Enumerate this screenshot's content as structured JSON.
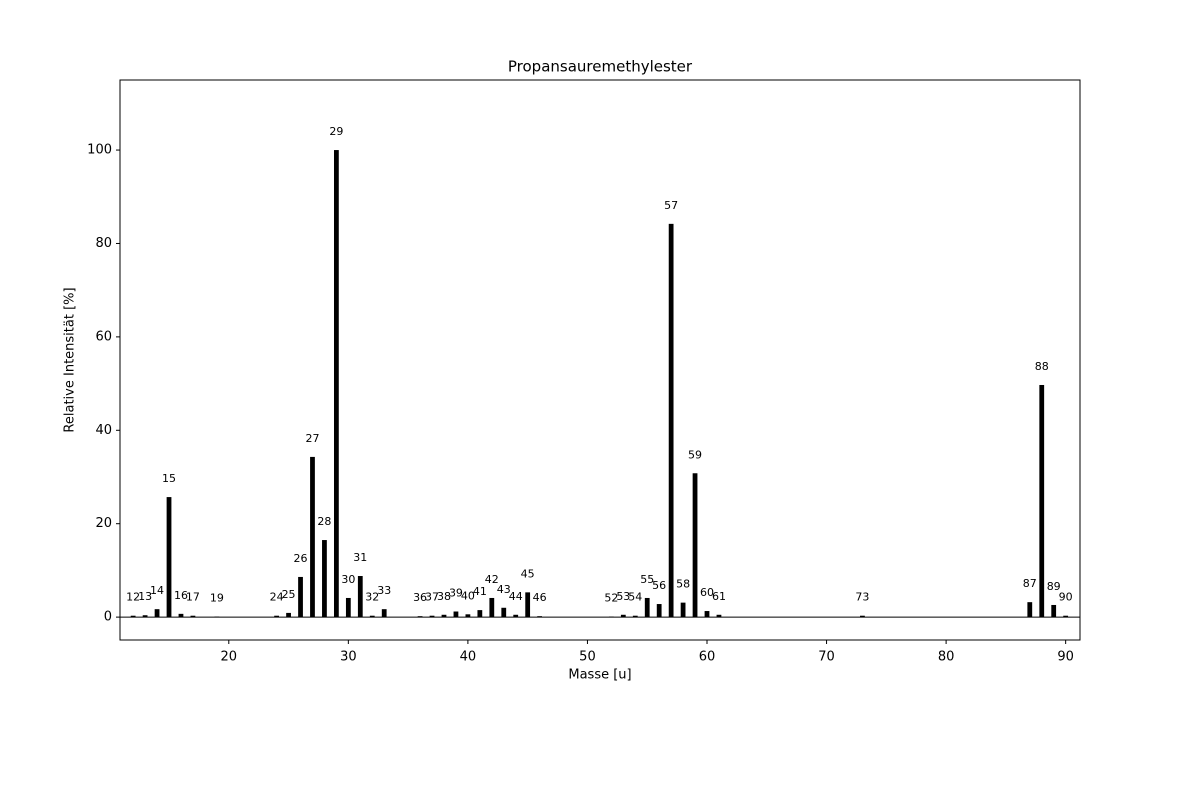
{
  "chart_data": {
    "type": "bar",
    "title": "Propansauremethylester",
    "x_label": "Masse [u]",
    "y_label": "Relative Intensität [%]",
    "x": [
      12,
      13,
      14,
      15,
      16,
      17,
      19,
      24,
      25,
      26,
      27,
      28,
      29,
      30,
      31,
      32,
      33,
      36,
      37,
      38,
      39,
      40,
      41,
      42,
      43,
      44,
      45,
      46,
      52,
      53,
      54,
      55,
      56,
      57,
      58,
      59,
      60,
      61,
      73,
      87,
      88,
      89,
      90
    ],
    "values": [
      0.3,
      0.4,
      1.7,
      25.7,
      0.7,
      0.3,
      0.1,
      0.3,
      0.9,
      8.6,
      34.3,
      16.5,
      100,
      4.1,
      8.8,
      0.3,
      1.7,
      0.2,
      0.3,
      0.5,
      1.2,
      0.6,
      1.5,
      4.1,
      2.0,
      0.5,
      5.3,
      0.2,
      0.1,
      0.5,
      0.3,
      4.1,
      2.8,
      84.2,
      3.1,
      30.8,
      1.3,
      0.5,
      0.3,
      3.2,
      49.7,
      2.6,
      0.3
    ],
    "color": "#000000",
    "xlim": [
      10.9,
      91.2
    ],
    "xticks": [
      20,
      30,
      40,
      50,
      60,
      70,
      80,
      90
    ],
    "ylim": [
      -4.9,
      115
    ],
    "yticks": [
      0,
      20,
      40,
      60,
      80,
      100
    ]
  }
}
